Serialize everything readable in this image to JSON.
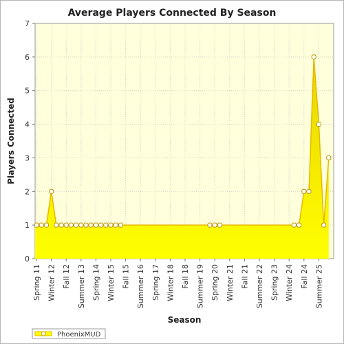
{
  "chart_data": {
    "type": "area",
    "title": "Average Players Connected By Season",
    "xlabel": "Season",
    "ylabel": "Players Connected",
    "ylim": [
      0,
      7
    ],
    "yticks": [
      0,
      1,
      2,
      3,
      4,
      5,
      6,
      7
    ],
    "grid": true,
    "legend_position": "bottom-left",
    "category_labels": [
      "Spring 11",
      "Winter 12",
      "Fall 12",
      "Summer 13",
      "Spring 14",
      "Winter 15",
      "Fall 15",
      "Summer 16",
      "Spring 17",
      "Winter 18",
      "Fall 18",
      "Summer 19",
      "Spring 20",
      "Winter 21",
      "Fall 21",
      "Summer 22",
      "Spring 23",
      "Winter 24",
      "Fall 24",
      "Summer 25"
    ],
    "categories": [
      "Spring 11",
      "Summer 11",
      "Fall 11",
      "Winter 12",
      "Spring 12",
      "Summer 12",
      "Fall 12",
      "Winter 13",
      "Spring 13",
      "Summer 13",
      "Fall 13",
      "Winter 14",
      "Spring 14",
      "Summer 14",
      "Fall 14",
      "Winter 15",
      "Spring 15",
      "Summer 15",
      "Fall 15",
      "Winter 16",
      "Spring 16",
      "Summer 16",
      "Fall 16",
      "Winter 17",
      "Spring 17",
      "Summer 17",
      "Fall 17",
      "Winter 18",
      "Spring 18",
      "Summer 18",
      "Fall 18",
      "Winter 19",
      "Spring 19",
      "Summer 19",
      "Fall 19",
      "Winter 20",
      "Spring 20",
      "Summer 20",
      "Fall 20",
      "Winter 21",
      "Spring 21",
      "Summer 21",
      "Fall 21",
      "Winter 22",
      "Spring 22",
      "Summer 22",
      "Fall 22",
      "Winter 23",
      "Spring 23",
      "Summer 23",
      "Fall 23",
      "Winter 24",
      "Spring 24",
      "Summer 24",
      "Fall 24",
      "Winter 25",
      "Spring 25",
      "Summer 25",
      "Fall 25",
      "Winter 26"
    ],
    "series": [
      {
        "name": "PhoenixMUD",
        "values": [
          1,
          1,
          1,
          2,
          1,
          1,
          1,
          1,
          1,
          1,
          1,
          1,
          1,
          1,
          1,
          1,
          1,
          1,
          null,
          null,
          null,
          null,
          null,
          null,
          null,
          null,
          null,
          null,
          null,
          null,
          null,
          null,
          null,
          null,
          null,
          1,
          1,
          1,
          null,
          null,
          null,
          null,
          null,
          null,
          null,
          null,
          null,
          null,
          null,
          null,
          null,
          null,
          1,
          1,
          2,
          2,
          6,
          4,
          1,
          3
        ],
        "fill_color": "#ffff00",
        "line_color": "#e6b800",
        "marker_fill": "#ffffff"
      }
    ],
    "plot_background": "#ffffdc"
  }
}
